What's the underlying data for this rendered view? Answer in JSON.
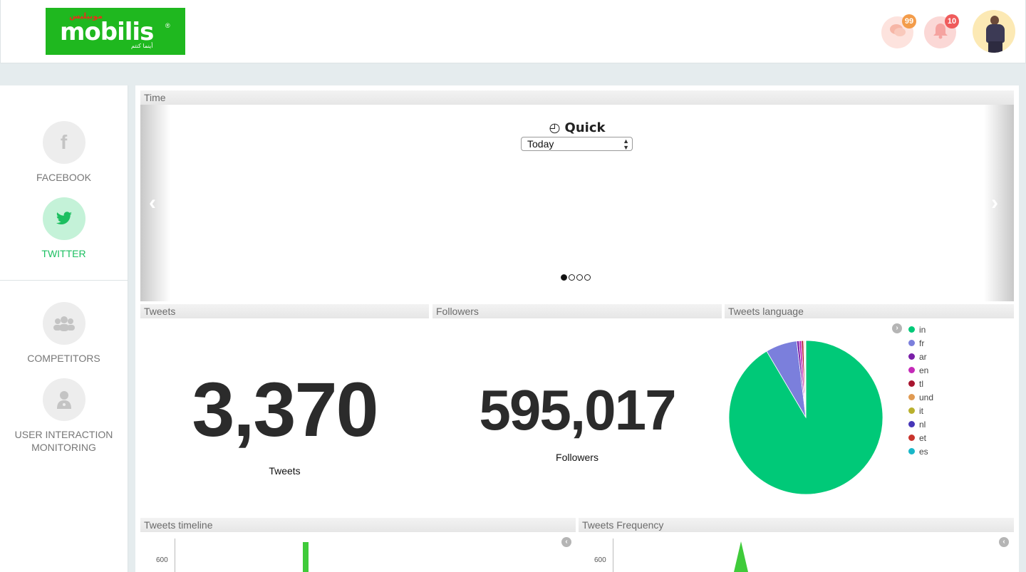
{
  "header": {
    "logo": {
      "word": "mobilis",
      "reg_mark": "®",
      "arabic_top": "موبيليس",
      "arabic_bottom": "أينما كنتم"
    },
    "messages_badge": "99",
    "notifications_badge": "10"
  },
  "sidebar": {
    "items": [
      {
        "label": "FACEBOOK",
        "icon": "facebook-icon",
        "glyph": "f"
      },
      {
        "label": "TWITTER",
        "icon": "twitter-icon",
        "glyph": "🐦"
      },
      {
        "label": "COMPETITORS",
        "icon": "group-icon",
        "glyph": "👥"
      },
      {
        "label_line1": "USER INTERACTION",
        "label_line2": "MONITORING",
        "icon": "doctor-icon",
        "glyph": "⚕"
      }
    ],
    "active_color": "#1cbf60"
  },
  "time_panel": {
    "title": "Time",
    "quick_title": "Quick",
    "clock_glyph": "◴",
    "selected": "Today",
    "arrow_left": "‹",
    "arrow_right": "›"
  },
  "tweets": {
    "title": "Tweets",
    "value": "3,370",
    "caption": "Tweets"
  },
  "followers": {
    "title": "Followers",
    "value": "595,017",
    "caption": "Followers"
  },
  "language": {
    "title": "Tweets language",
    "legend": [
      {
        "label": "in",
        "color": "#00c978"
      },
      {
        "label": "fr",
        "color": "#7b7fdc"
      },
      {
        "label": "ar",
        "color": "#7a1fa8"
      },
      {
        "label": "en",
        "color": "#c42ab8"
      },
      {
        "label": "tl",
        "color": "#a8142f"
      },
      {
        "label": "und",
        "color": "#e09a52"
      },
      {
        "label": "it",
        "color": "#b9b02d"
      },
      {
        "label": "nl",
        "color": "#4636b8"
      },
      {
        "label": "et",
        "color": "#c9342d"
      },
      {
        "label": "es",
        "color": "#19b7c8"
      }
    ]
  },
  "chart_data": [
    {
      "type": "pie",
      "title": "Tweets language",
      "labels": [
        "in",
        "fr",
        "ar",
        "en",
        "tl",
        "und",
        "it",
        "nl",
        "et",
        "es"
      ],
      "values": [
        91.5,
        6.6,
        0.5,
        0.5,
        0.4,
        0.2,
        0.1,
        0.1,
        0.05,
        0.05
      ],
      "colors": [
        "#00c978",
        "#7b7fdc",
        "#7a1fa8",
        "#c42ab8",
        "#a8142f",
        "#e09a52",
        "#b9b02d",
        "#4636b8",
        "#c9342d",
        "#19b7c8"
      ],
      "legend": "right"
    },
    {
      "type": "bar",
      "title": "Tweets timeline",
      "yticks": [
        "600"
      ],
      "color": "#3fcb3a"
    },
    {
      "type": "area",
      "title": "Tweets Frequency",
      "yticks": [
        "600"
      ],
      "color": "#3fcb3a"
    }
  ],
  "timeline": {
    "title": "Tweets timeline",
    "tick": "600",
    "toggle": "‹"
  },
  "frequency": {
    "title": "Tweets Frequency",
    "tick": "600",
    "toggle": "‹"
  }
}
